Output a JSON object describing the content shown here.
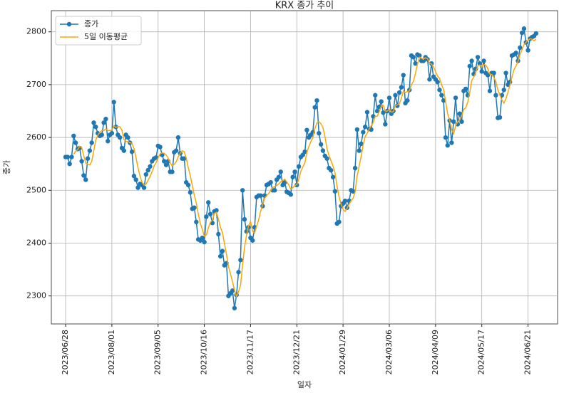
{
  "chart_data": {
    "type": "line",
    "title": "KRX 종가 추이",
    "x_label": "일자",
    "y_label": "종가",
    "categories": [
      "2023/06/28",
      null,
      null,
      null,
      null,
      null,
      null,
      null,
      null,
      null,
      null,
      null,
      null,
      null,
      null,
      null,
      null,
      null,
      null,
      null,
      null,
      null,
      null,
      "2023/08/01",
      null,
      null,
      null,
      null,
      null,
      null,
      null,
      null,
      null,
      null,
      null,
      null,
      null,
      null,
      null,
      null,
      null,
      null,
      null,
      null,
      null,
      null,
      "2023/09/05",
      null,
      null,
      null,
      null,
      null,
      null,
      null,
      null,
      null,
      null,
      null,
      null,
      null,
      null,
      null,
      null,
      null,
      null,
      null,
      null,
      null,
      null,
      "2023/10/16",
      null,
      null,
      null,
      null,
      null,
      null,
      null,
      null,
      null,
      null,
      null,
      null,
      null,
      null,
      null,
      null,
      null,
      null,
      null,
      null,
      null,
      null,
      "2023/11/17",
      null,
      null,
      null,
      null,
      null,
      null,
      null,
      null,
      null,
      null,
      null,
      null,
      null,
      null,
      null,
      null,
      null,
      null,
      null,
      null,
      null,
      null,
      "2023/12/21",
      null,
      null,
      null,
      null,
      null,
      null,
      null,
      null,
      null,
      null,
      null,
      null,
      null,
      null,
      null,
      null,
      null,
      null,
      null,
      null,
      null,
      null,
      "2024/01/29",
      null,
      null,
      null,
      null,
      null,
      null,
      null,
      null,
      null,
      null,
      null,
      null,
      null,
      null,
      null,
      null,
      null,
      null,
      null,
      null,
      null,
      null,
      "2024/03/06",
      null,
      null,
      null,
      null,
      null,
      null,
      null,
      null,
      null,
      null,
      null,
      null,
      null,
      null,
      null,
      null,
      null,
      null,
      null,
      null,
      null,
      null,
      "2024/04/09",
      null,
      null,
      null,
      null,
      null,
      null,
      null,
      null,
      null,
      null,
      null,
      null,
      null,
      null,
      null,
      null,
      null,
      null,
      null,
      null,
      null,
      null,
      "2024/05/17",
      null,
      null,
      null,
      null,
      null,
      null,
      null,
      null,
      null,
      null,
      null,
      null,
      null,
      null,
      null,
      null,
      null,
      null,
      null,
      null,
      null,
      null,
      "2024/06/21",
      null,
      null,
      null,
      null
    ],
    "series": [
      {
        "name": "종가",
        "color": "#1f77b4",
        "marker": "o",
        "values": [
          2563,
          2563,
          2550,
          2563,
          2603,
          2590,
          2578,
          2580,
          2555,
          2528,
          2520,
          2560,
          2575,
          2590,
          2628,
          2620,
          2608,
          2603,
          2605,
          2628,
          2635,
          2593,
          2605,
          2608,
          2667,
          2620,
          2605,
          2600,
          2580,
          2575,
          2605,
          2600,
          2590,
          2573,
          2527,
          2520,
          2505,
          2512,
          2510,
          2505,
          2530,
          2538,
          2545,
          2555,
          2560,
          2562,
          2584,
          2582,
          2567,
          2555,
          2548,
          2555,
          2535,
          2535,
          2572,
          2575,
          2600,
          2570,
          2560,
          2560,
          2515,
          2510,
          2496,
          2465,
          2467,
          2440,
          2407,
          2405,
          2410,
          2402,
          2450,
          2477,
          2455,
          2438,
          2460,
          2462,
          2417,
          2375,
          2385,
          2358,
          2362,
          2300,
          2305,
          2310,
          2277,
          2302,
          2345,
          2368,
          2500,
          2445,
          2422,
          2430,
          2410,
          2405,
          2430,
          2487,
          2490,
          2490,
          2470,
          2490,
          2510,
          2512,
          2515,
          2500,
          2500,
          2520,
          2525,
          2535,
          2510,
          2515,
          2497,
          2495,
          2492,
          2525,
          2535,
          2510,
          2545,
          2563,
          2567,
          2573,
          2614,
          2600,
          2605,
          2610,
          2657,
          2670,
          2608,
          2587,
          2575,
          2565,
          2560,
          2542,
          2538,
          2525,
          2498,
          2437,
          2440,
          2470,
          2475,
          2480,
          2467,
          2480,
          2500,
          2498,
          2542,
          2615,
          2575,
          2588,
          2610,
          2620,
          2648,
          2616,
          2615,
          2640,
          2680,
          2650,
          2658,
          2668,
          2647,
          2625,
          2650,
          2675,
          2645,
          2650,
          2680,
          2660,
          2685,
          2695,
          2718,
          2665,
          2670,
          2690,
          2755,
          2752,
          2740,
          2757,
          2755,
          2745,
          2745,
          2752,
          2748,
          2710,
          2740,
          2715,
          2710,
          2705,
          2690,
          2680,
          2670,
          2600,
          2585,
          2632,
          2590,
          2630,
          2675,
          2625,
          2645,
          2630,
          2688,
          2692,
          2680,
          2735,
          2745,
          2720,
          2730,
          2752,
          2740,
          2725,
          2745,
          2722,
          2718,
          2688,
          2722,
          2722,
          2680,
          2637,
          2638,
          2680,
          2690,
          2722,
          2700,
          2705,
          2755,
          2757,
          2760,
          2745,
          2770,
          2798,
          2806,
          2780,
          2765,
          2787,
          2790,
          2792,
          2797
        ]
      },
      {
        "name": "5일 이동평균",
        "color": "#ffa500",
        "values": [
          null,
          null,
          null,
          null,
          2568,
          2574,
          2577,
          2583,
          2581,
          2566,
          2552,
          2549,
          2548,
          2555,
          2575,
          2595,
          2604,
          2610,
          2613,
          2613,
          2616,
          2613,
          2613,
          2614,
          2622,
          2619,
          2621,
          2620,
          2614,
          2596,
          2593,
          2592,
          2590,
          2589,
          2579,
          2562,
          2543,
          2527,
          2515,
          2510,
          2512,
          2519,
          2526,
          2535,
          2546,
          2552,
          2561,
          2569,
          2571,
          2570,
          2567,
          2561,
          2552,
          2546,
          2549,
          2554,
          2563,
          2570,
          2575,
          2573,
          2561,
          2543,
          2528,
          2509,
          2491,
          2476,
          2455,
          2437,
          2426,
          2413,
          2415,
          2429,
          2439,
          2444,
          2456,
          2458,
          2446,
          2430,
          2420,
          2399,
          2379,
          2356,
          2342,
          2327,
          2311,
          2299,
          2308,
          2320,
          2358,
          2392,
          2416,
          2433,
          2441,
          2422,
          2419,
          2432,
          2444,
          2460,
          2473,
          2485,
          2490,
          2494,
          2499,
          2505,
          2507,
          2509,
          2512,
          2516,
          2518,
          2521,
          2516,
          2510,
          2502,
          2505,
          2509,
          2511,
          2521,
          2536,
          2544,
          2552,
          2572,
          2583,
          2592,
          2600,
          2617,
          2628,
          2630,
          2626,
          2619,
          2601,
          2579,
          2566,
          2556,
          2546,
          2533,
          2508,
          2488,
          2474,
          2464,
          2460,
          2466,
          2474,
          2480,
          2485,
          2497,
          2527,
          2546,
          2564,
          2586,
          2602,
          2608,
          2616,
          2622,
          2628,
          2640,
          2640,
          2649,
          2659,
          2661,
          2650,
          2650,
          2653,
          2648,
          2649,
          2660,
          2662,
          2664,
          2674,
          2688,
          2685,
          2687,
          2688,
          2700,
          2706,
          2721,
          2739,
          2752,
          2750,
          2748,
          2751,
          2749,
          2740,
          2739,
          2733,
          2725,
          2716,
          2712,
          2700,
          2691,
          2669,
          2645,
          2633,
          2615,
          2607,
          2622,
          2630,
          2633,
          2641,
          2653,
          2656,
          2667,
          2685,
          2708,
          2714,
          2722,
          2736,
          2737,
          2733,
          2738,
          2737,
          2730,
          2720,
          2719,
          2714,
          2706,
          2690,
          2680,
          2671,
          2665,
          2673,
          2686,
          2699,
          2714,
          2728,
          2735,
          2744,
          2757,
          2766,
          2776,
          2780,
          2784,
          2787,
          2786,
          2783,
          2786
        ]
      }
    ],
    "ylim": [
      2247,
      2840
    ],
    "yticks": [
      2300,
      2400,
      2500,
      2600,
      2700,
      2800
    ],
    "grid": true,
    "legend": "upper left"
  }
}
